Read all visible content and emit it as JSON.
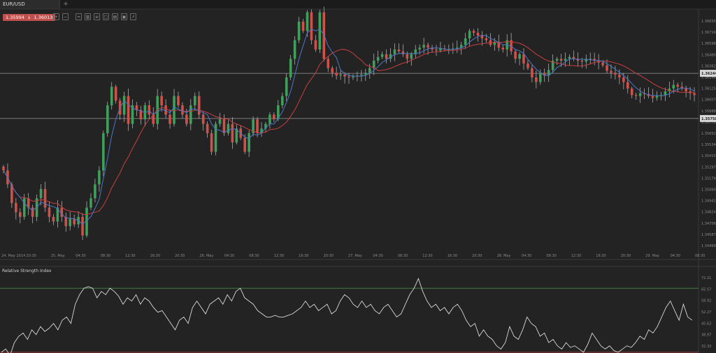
{
  "tab": {
    "symbol": "EUR/USD",
    "add": "+"
  },
  "quote": {
    "bid": "1.35994",
    "ask": "1.36013",
    "arrow": "↓"
  },
  "toolbar": {
    "icons": [
      "zoom-in-icon",
      "zoom-out-icon",
      "chart-type-icon",
      "bar-chart-icon",
      "indicator-icon",
      "template-icon",
      "draw-icon",
      "snapshot-icon",
      "settings-icon"
    ]
  },
  "colors": {
    "background": "#232323",
    "bull": "#3ea05a",
    "bear": "#d0504a",
    "ma_fast": "#4a78c8",
    "ma_slow": "#c84040",
    "level_line": "#9a9a9a",
    "rsi_line": "#d8d8d8",
    "rsi_upper": "#4a8a4a",
    "rsi_lower": "#b84040"
  },
  "chart_data": [
    {
      "type": "candlestick",
      "title": "EUR/USD",
      "ylim": [
        1.34369,
        1.3692
      ],
      "y_ticks": [
        "1.36835",
        "1.36716",
        "1.36598",
        "1.36480",
        "1.36362",
        "1.36244",
        "1.36125",
        "1.36007",
        "1.35888",
        "1.35770",
        "1.35652",
        "1.35534",
        "1.35415",
        "1.35297",
        "1.35179",
        "1.35060",
        "1.34942",
        "1.34824",
        "1.34706",
        "1.34587",
        "1.34469"
      ],
      "x_ticks": [
        "24. May 2014",
        "20:30",
        "25. May",
        "04:30",
        "08:30",
        "12:30",
        "16:30",
        "20:30",
        "26. May",
        "04:30",
        "08:30",
        "12:30",
        "16:30",
        "20:30",
        "27. May",
        "04:30",
        "08:30",
        "12:30",
        "16:30",
        "20:30",
        "28. May",
        "04:30",
        "08:30",
        "12:30",
        "16:30",
        "20:30",
        "29. May",
        "04:30",
        "08:30"
      ],
      "levels": [
        {
          "label": "1.36244",
          "value": 1.36244
        },
        {
          "label": "1.35758",
          "value": 1.35758
        }
      ],
      "close": [
        1.352,
        1.3505,
        1.3485,
        1.3475,
        1.347,
        1.349,
        1.348,
        1.347,
        1.349,
        1.35,
        1.348,
        1.347,
        1.3465,
        1.348,
        1.347,
        1.346,
        1.3468,
        1.3462,
        1.347,
        1.345,
        1.348,
        1.349,
        1.3505,
        1.352,
        1.356,
        1.359,
        1.361,
        1.3595,
        1.358,
        1.36,
        1.357,
        1.359,
        1.3585,
        1.3575,
        1.359,
        1.358,
        1.357,
        1.36,
        1.359,
        1.358,
        1.357,
        1.36,
        1.359,
        1.358,
        1.357,
        1.359,
        1.36,
        1.358,
        1.357,
        1.356,
        1.354,
        1.357,
        1.3575,
        1.356,
        1.357,
        1.355,
        1.3565,
        1.3555,
        1.354,
        1.356,
        1.3575,
        1.356,
        1.3565,
        1.357,
        1.358,
        1.3575,
        1.359,
        1.36,
        1.362,
        1.364,
        1.366,
        1.368,
        1.367,
        1.369,
        1.366,
        1.365,
        1.369,
        1.364,
        1.363,
        1.3625,
        1.3622,
        1.3623,
        1.3621,
        1.362,
        1.3621,
        1.3622,
        1.3623,
        1.3625,
        1.363,
        1.3638,
        1.3642,
        1.3645,
        1.364,
        1.3645,
        1.365,
        1.3648,
        1.3645,
        1.364,
        1.3645,
        1.365,
        1.3652,
        1.3655,
        1.3652,
        1.365,
        1.3649,
        1.3651,
        1.365,
        1.365,
        1.3651,
        1.3652,
        1.3655,
        1.3662,
        1.367,
        1.3668,
        1.3665,
        1.3662,
        1.366,
        1.3655,
        1.3658,
        1.3652,
        1.365,
        1.366,
        1.3648,
        1.364,
        1.3645,
        1.3635,
        1.363,
        1.362,
        1.3615,
        1.3625,
        1.3622,
        1.3628,
        1.3638,
        1.364,
        1.3638,
        1.364,
        1.3642,
        1.364,
        1.3638,
        1.3637,
        1.364,
        1.364,
        1.3638,
        1.3636,
        1.3633,
        1.3627,
        1.3625,
        1.3623,
        1.362,
        1.3615,
        1.3608,
        1.3601,
        1.36,
        1.3603,
        1.3602,
        1.36,
        1.3598,
        1.36,
        1.3601,
        1.3605,
        1.3608,
        1.3612,
        1.361,
        1.3608,
        1.3605,
        1.3603,
        1.3601
      ],
      "fast_ma_period": 5,
      "slow_ma_period": 14
    },
    {
      "type": "line",
      "title": "Relative Strength Index",
      "ylim": [
        29.5,
        77.5
      ],
      "y_ticks": [
        "72.21",
        "65.57",
        "58.92",
        "52.27",
        "45.62",
        "38.97",
        "32.33"
      ],
      "levels": [
        70,
        30
      ],
      "values": [
        30,
        32,
        28,
        36,
        40,
        42,
        38,
        44,
        41,
        46,
        43,
        45,
        48,
        44,
        50,
        52,
        48,
        60,
        66,
        70,
        71,
        70,
        64,
        68,
        66,
        70,
        68,
        65,
        60,
        64,
        62,
        66,
        60,
        64,
        62,
        58,
        55,
        56,
        52,
        48,
        44,
        50,
        52,
        48,
        58,
        62,
        58,
        54,
        60,
        62,
        64,
        60,
        66,
        62,
        68,
        70,
        64,
        62,
        60,
        56,
        54,
        52,
        52,
        53,
        52,
        52,
        53,
        54,
        56,
        58,
        62,
        58,
        60,
        56,
        58,
        60,
        54,
        56,
        62,
        66,
        64,
        60,
        58,
        62,
        58,
        60,
        56,
        54,
        58,
        60,
        56,
        52,
        54,
        60,
        66,
        70,
        76,
        68,
        62,
        58,
        60,
        56,
        58,
        54,
        58,
        60,
        56,
        50,
        46,
        48,
        40,
        44,
        40,
        38,
        34,
        32,
        36,
        46,
        40,
        38,
        44,
        52,
        48,
        46,
        40,
        42,
        36,
        38,
        34,
        32,
        36,
        33,
        34,
        32,
        30,
        35,
        42,
        38,
        34,
        32,
        34,
        31,
        30,
        32,
        34,
        33,
        36,
        40,
        38,
        44,
        42,
        46,
        52,
        58,
        62,
        56,
        50,
        60,
        52,
        50
      ],
      "upper": 70,
      "lower": 30
    }
  ]
}
